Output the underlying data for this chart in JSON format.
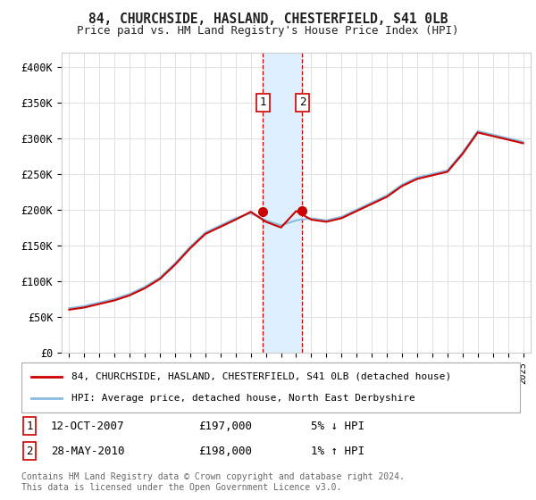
{
  "title": "84, CHURCHSIDE, HASLAND, CHESTERFIELD, S41 0LB",
  "subtitle": "Price paid vs. HM Land Registry's House Price Index (HPI)",
  "ylabel_ticks": [
    "£0",
    "£50K",
    "£100K",
    "£150K",
    "£200K",
    "£250K",
    "£300K",
    "£350K",
    "£400K"
  ],
  "ylim": [
    0,
    420000
  ],
  "xlim": [
    1994.5,
    2025.5
  ],
  "sale1": {
    "date_num": 2007.79,
    "price": 197000,
    "label": "1"
  },
  "sale2": {
    "date_num": 2010.41,
    "price": 198000,
    "label": "2"
  },
  "hpi_line_color": "#88bbdd",
  "price_line_color": "#cc0000",
  "legend1": "84, CHURCHSIDE, HASLAND, CHESTERFIELD, S41 0LB (detached house)",
  "legend2": "HPI: Average price, detached house, North East Derbyshire",
  "table_row1": [
    "1",
    "12-OCT-2007",
    "£197,000",
    "5% ↓ HPI"
  ],
  "table_row2": [
    "2",
    "28-MAY-2010",
    "£198,000",
    "1% ↑ HPI"
  ],
  "footnote": "Contains HM Land Registry data © Crown copyright and database right 2024.\nThis data is licensed under the Open Government Licence v3.0.",
  "background_color": "#ffffff",
  "grid_color": "#e0e0e0",
  "shade_color": "#ddeeff",
  "years_hpi": [
    1995,
    1996,
    1997,
    1998,
    1999,
    2000,
    2001,
    2002,
    2003,
    2004,
    2005,
    2006,
    2007,
    2008,
    2009,
    2010,
    2011,
    2012,
    2013,
    2014,
    2015,
    2016,
    2017,
    2018,
    2019,
    2020,
    2021,
    2022,
    2023,
    2024,
    2025
  ],
  "hpi_vals": [
    62000,
    65000,
    70000,
    75000,
    82000,
    92000,
    105000,
    125000,
    148000,
    168000,
    178000,
    188000,
    195000,
    185000,
    178000,
    185000,
    188000,
    185000,
    190000,
    200000,
    210000,
    220000,
    235000,
    245000,
    250000,
    255000,
    280000,
    310000,
    305000,
    300000,
    295000
  ],
  "price_vals": [
    60000,
    63000,
    68000,
    73000,
    80000,
    90000,
    103000,
    123000,
    146000,
    166000,
    176000,
    186000,
    197000,
    183000,
    175000,
    198000,
    186000,
    183000,
    188000,
    198000,
    208000,
    218000,
    233000,
    243000,
    248000,
    253000,
    278000,
    308000,
    303000,
    298000,
    293000
  ]
}
